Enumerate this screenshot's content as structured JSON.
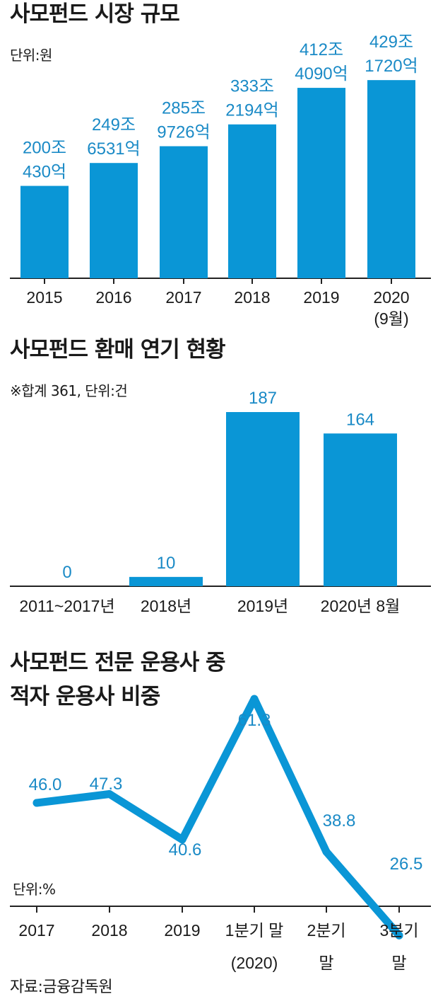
{
  "colors": {
    "bar": "#0a96d6",
    "label": "#1a8ac6",
    "axis": "#222222",
    "text": "#1a1a1a"
  },
  "source": "자료:금융감독원",
  "chart_data": [
    {
      "type": "bar",
      "title": "사모펀드 시장 규모",
      "unit": "단위:원",
      "categories": [
        [
          "2015"
        ],
        [
          "2016"
        ],
        [
          "2017"
        ],
        [
          "2018"
        ],
        [
          "2019"
        ],
        [
          "2020",
          "(9월)"
        ]
      ],
      "values": [
        200.043,
        249.6531,
        285.9726,
        333.2194,
        412.409,
        429.172
      ],
      "value_labels": [
        [
          "200조",
          "430억"
        ],
        [
          "249조",
          "6531억"
        ],
        [
          "285조",
          "9726억"
        ],
        [
          "333조",
          "2194억"
        ],
        [
          "412조",
          "4090억"
        ],
        [
          "429조",
          "1720억"
        ]
      ],
      "ylim": [
        0,
        480
      ]
    },
    {
      "type": "bar",
      "title": "사모펀드 환매 연기 현황",
      "unit": "※합계 361, 단위:건",
      "categories": [
        [
          "2011~2017년"
        ],
        [
          "2018년"
        ],
        [
          "2019년"
        ],
        [
          "2020년 8월"
        ]
      ],
      "values": [
        0,
        10,
        187,
        164
      ],
      "value_labels": [
        [
          "0"
        ],
        [
          "10"
        ],
        [
          "187"
        ],
        [
          "164"
        ]
      ],
      "ylim": [
        0,
        200
      ]
    },
    {
      "type": "line",
      "title": [
        "사모펀드 전문 운용사 중",
        "적자 운용사 비중"
      ],
      "unit": "단위:%",
      "categories": [
        [
          "2017"
        ],
        [
          "2018"
        ],
        [
          "2019"
        ],
        [
          "1분기 말",
          "(2020)"
        ],
        [
          "2분기",
          "말"
        ],
        [
          "3분기",
          "말"
        ]
      ],
      "values": [
        46.0,
        47.3,
        40.6,
        61.3,
        38.8,
        26.5
      ],
      "value_labels": [
        "46.0",
        "47.3",
        "40.6",
        "61.3",
        "38.8",
        "26.5"
      ],
      "ylim": [
        20,
        65
      ]
    }
  ]
}
